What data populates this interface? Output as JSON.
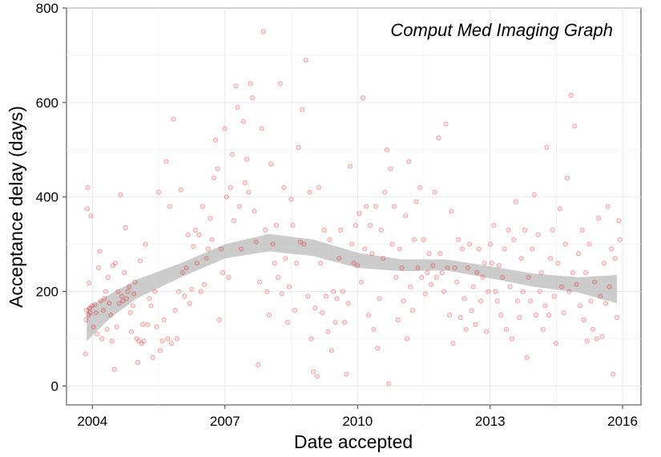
{
  "chart_data": {
    "type": "scatter",
    "annotation": "Comput Med Imaging Graph",
    "xlabel": "Date accepted",
    "ylabel": "Acceptance delay (days)",
    "xlim": [
      "2003-06-01",
      "2016-06-01"
    ],
    "ylim": [
      -40,
      800
    ],
    "x_ticks": [
      {
        "date": "2004-01-01",
        "label": "2004"
      },
      {
        "date": "2007-01-01",
        "label": "2007"
      },
      {
        "date": "2010-01-01",
        "label": "2010"
      },
      {
        "date": "2013-01-01",
        "label": "2013"
      },
      {
        "date": "2016-01-01",
        "label": "2016"
      }
    ],
    "y_ticks": [
      {
        "value": 0,
        "label": "0"
      },
      {
        "value": 200,
        "label": "200"
      },
      {
        "value": 400,
        "label": "400"
      },
      {
        "value": 600,
        "label": "600"
      },
      {
        "value": 800,
        "label": "800"
      }
    ],
    "grid": true,
    "point_color": "#e41a1c",
    "smooth_band_color": "#bbbbbb",
    "smooth": [
      {
        "date": "2003-11-15",
        "lo": 95,
        "hi": 165
      },
      {
        "date": "2004-06-01",
        "lo": 145,
        "hi": 195
      },
      {
        "date": "2005-01-01",
        "lo": 185,
        "hi": 225
      },
      {
        "date": "2006-01-01",
        "lo": 230,
        "hi": 260
      },
      {
        "date": "2007-01-01",
        "lo": 270,
        "hi": 300
      },
      {
        "date": "2008-01-01",
        "lo": 285,
        "hi": 322
      },
      {
        "date": "2009-01-01",
        "lo": 275,
        "hi": 310
      },
      {
        "date": "2010-01-01",
        "lo": 250,
        "hi": 282
      },
      {
        "date": "2011-01-01",
        "lo": 243,
        "hi": 268
      },
      {
        "date": "2012-01-01",
        "lo": 245,
        "hi": 268
      },
      {
        "date": "2013-01-01",
        "lo": 228,
        "hi": 253
      },
      {
        "date": "2014-01-01",
        "lo": 210,
        "hi": 238
      },
      {
        "date": "2015-01-01",
        "lo": 198,
        "hi": 230
      },
      {
        "date": "2015-11-15",
        "lo": 175,
        "hi": 235
      }
    ],
    "points": [
      [
        "2003-11-05",
        68
      ],
      [
        "2003-11-10",
        140
      ],
      [
        "2003-11-15",
        160
      ],
      [
        "2003-11-20",
        375
      ],
      [
        "2003-11-25",
        420
      ],
      [
        "2003-12-01",
        150
      ],
      [
        "2003-12-05",
        218
      ],
      [
        "2003-12-10",
        165
      ],
      [
        "2003-12-15",
        155
      ],
      [
        "2003-12-20",
        360
      ],
      [
        "2003-12-28",
        170
      ],
      [
        "2004-01-10",
        125
      ],
      [
        "2004-01-20",
        172
      ],
      [
        "2004-02-01",
        155
      ],
      [
        "2004-02-10",
        110
      ],
      [
        "2004-02-20",
        250
      ],
      [
        "2004-03-01",
        285
      ],
      [
        "2004-03-10",
        180
      ],
      [
        "2004-03-20",
        100
      ],
      [
        "2004-04-01",
        160
      ],
      [
        "2004-04-10",
        185
      ],
      [
        "2004-04-20",
        200
      ],
      [
        "2004-05-01",
        120
      ],
      [
        "2004-05-10",
        230
      ],
      [
        "2004-05-20",
        175
      ],
      [
        "2004-06-01",
        150
      ],
      [
        "2004-06-10",
        95
      ],
      [
        "2004-06-20",
        255
      ],
      [
        "2004-07-01",
        35
      ],
      [
        "2004-07-10",
        260
      ],
      [
        "2004-07-20",
        125
      ],
      [
        "2004-08-01",
        200
      ],
      [
        "2004-08-10",
        175
      ],
      [
        "2004-08-20",
        405
      ],
      [
        "2004-09-01",
        190
      ],
      [
        "2004-09-10",
        180
      ],
      [
        "2004-09-20",
        240
      ],
      [
        "2004-10-01",
        335
      ],
      [
        "2004-10-10",
        185
      ],
      [
        "2004-10-20",
        200
      ],
      [
        "2004-11-01",
        210
      ],
      [
        "2004-11-10",
        155
      ],
      [
        "2004-11-20",
        115
      ],
      [
        "2004-12-01",
        170
      ],
      [
        "2004-12-10",
        195
      ],
      [
        "2004-12-20",
        220
      ],
      [
        "2005-01-01",
        100
      ],
      [
        "2005-01-10",
        50
      ],
      [
        "2005-01-20",
        95
      ],
      [
        "2005-02-01",
        265
      ],
      [
        "2005-02-10",
        90
      ],
      [
        "2005-02-20",
        130
      ],
      [
        "2005-03-01",
        95
      ],
      [
        "2005-03-15",
        300
      ],
      [
        "2005-04-01",
        130
      ],
      [
        "2005-04-15",
        185
      ],
      [
        "2005-05-01",
        170
      ],
      [
        "2005-05-15",
        60
      ],
      [
        "2005-06-01",
        200
      ],
      [
        "2005-06-15",
        125
      ],
      [
        "2005-07-01",
        410
      ],
      [
        "2005-07-15",
        75
      ],
      [
        "2005-08-01",
        95
      ],
      [
        "2005-08-15",
        140
      ],
      [
        "2005-09-01",
        475
      ],
      [
        "2005-09-15",
        100
      ],
      [
        "2005-10-01",
        380
      ],
      [
        "2005-10-15",
        90
      ],
      [
        "2005-11-01",
        565
      ],
      [
        "2005-11-15",
        160
      ],
      [
        "2005-12-01",
        100
      ],
      [
        "2005-12-15",
        200
      ],
      [
        "2006-01-01",
        415
      ],
      [
        "2006-01-15",
        240
      ],
      [
        "2006-02-01",
        190
      ],
      [
        "2006-02-15",
        250
      ],
      [
        "2006-03-01",
        320
      ],
      [
        "2006-03-15",
        175
      ],
      [
        "2006-04-01",
        205
      ],
      [
        "2006-04-15",
        295
      ],
      [
        "2006-05-01",
        330
      ],
      [
        "2006-05-15",
        260
      ],
      [
        "2006-06-01",
        320
      ],
      [
        "2006-06-15",
        200
      ],
      [
        "2006-07-01",
        380
      ],
      [
        "2006-07-15",
        215
      ],
      [
        "2006-08-01",
        270
      ],
      [
        "2006-08-15",
        290
      ],
      [
        "2006-09-01",
        355
      ],
      [
        "2006-09-15",
        310
      ],
      [
        "2006-10-01",
        440
      ],
      [
        "2006-10-15",
        520
      ],
      [
        "2006-11-01",
        460
      ],
      [
        "2006-11-15",
        140
      ],
      [
        "2006-12-01",
        290
      ],
      [
        "2006-12-15",
        240
      ],
      [
        "2007-01-01",
        545
      ],
      [
        "2007-01-15",
        400
      ],
      [
        "2007-02-01",
        230
      ],
      [
        "2007-02-15",
        420
      ],
      [
        "2007-03-01",
        490
      ],
      [
        "2007-03-15",
        350
      ],
      [
        "2007-04-01",
        635
      ],
      [
        "2007-04-15",
        590
      ],
      [
        "2007-05-01",
        380
      ],
      [
        "2007-05-15",
        290
      ],
      [
        "2007-06-01",
        560
      ],
      [
        "2007-06-15",
        430
      ],
      [
        "2007-07-01",
        480
      ],
      [
        "2007-07-15",
        410
      ],
      [
        "2007-08-01",
        640
      ],
      [
        "2007-08-15",
        610
      ],
      [
        "2007-09-01",
        370
      ],
      [
        "2007-09-15",
        305
      ],
      [
        "2007-10-01",
        45
      ],
      [
        "2007-10-15",
        220
      ],
      [
        "2007-11-01",
        545
      ],
      [
        "2007-11-15",
        750
      ],
      [
        "2007-12-01",
        330
      ],
      [
        "2007-12-15",
        200
      ],
      [
        "2008-01-01",
        150
      ],
      [
        "2008-01-15",
        470
      ],
      [
        "2008-02-01",
        300
      ],
      [
        "2008-02-15",
        260
      ],
      [
        "2008-03-01",
        340
      ],
      [
        "2008-03-15",
        230
      ],
      [
        "2008-04-01",
        640
      ],
      [
        "2008-04-15",
        195
      ],
      [
        "2008-05-01",
        420
      ],
      [
        "2008-05-15",
        270
      ],
      [
        "2008-06-01",
        135
      ],
      [
        "2008-06-15",
        210
      ],
      [
        "2008-07-01",
        395
      ],
      [
        "2008-07-15",
        340
      ],
      [
        "2008-08-01",
        160
      ],
      [
        "2008-08-15",
        260
      ],
      [
        "2008-09-01",
        505
      ],
      [
        "2008-09-15",
        305
      ],
      [
        "2008-10-01",
        585
      ],
      [
        "2008-10-15",
        300
      ],
      [
        "2008-11-01",
        690
      ],
      [
        "2008-11-15",
        190
      ],
      [
        "2008-12-01",
        410
      ],
      [
        "2008-12-15",
        100
      ],
      [
        "2009-01-01",
        30
      ],
      [
        "2009-01-15",
        165
      ],
      [
        "2009-02-01",
        20
      ],
      [
        "2009-02-15",
        420
      ],
      [
        "2009-03-01",
        260
      ],
      [
        "2009-03-15",
        155
      ],
      [
        "2009-04-01",
        330
      ],
      [
        "2009-04-15",
        190
      ],
      [
        "2009-05-01",
        115
      ],
      [
        "2009-05-15",
        310
      ],
      [
        "2009-06-01",
        75
      ],
      [
        "2009-06-15",
        200
      ],
      [
        "2009-07-01",
        135
      ],
      [
        "2009-07-15",
        185
      ],
      [
        "2009-08-01",
        270
      ],
      [
        "2009-08-15",
        330
      ],
      [
        "2009-09-01",
        200
      ],
      [
        "2009-09-15",
        135
      ],
      [
        "2009-10-01",
        25
      ],
      [
        "2009-10-15",
        175
      ],
      [
        "2009-11-01",
        465
      ],
      [
        "2009-11-15",
        300
      ],
      [
        "2009-12-01",
        260
      ],
      [
        "2009-12-15",
        340
      ],
      [
        "2010-01-01",
        255
      ],
      [
        "2010-01-15",
        365
      ],
      [
        "2010-02-01",
        220
      ],
      [
        "2010-02-15",
        610
      ],
      [
        "2010-03-01",
        290
      ],
      [
        "2010-03-15",
        380
      ],
      [
        "2010-04-01",
        150
      ],
      [
        "2010-04-15",
        340
      ],
      [
        "2010-05-01",
        280
      ],
      [
        "2010-05-15",
        120
      ],
      [
        "2010-06-01",
        380
      ],
      [
        "2010-06-15",
        80
      ],
      [
        "2010-07-01",
        185
      ],
      [
        "2010-07-15",
        330
      ],
      [
        "2010-08-01",
        270
      ],
      [
        "2010-08-15",
        410
      ],
      [
        "2010-09-01",
        500
      ],
      [
        "2010-09-15",
        5
      ],
      [
        "2010-10-01",
        460
      ],
      [
        "2010-10-15",
        300
      ],
      [
        "2010-11-01",
        380
      ],
      [
        "2010-11-15",
        230
      ],
      [
        "2010-12-01",
        140
      ],
      [
        "2010-12-15",
        290
      ],
      [
        "2011-01-01",
        250
      ],
      [
        "2011-01-15",
        180
      ],
      [
        "2011-02-01",
        360
      ],
      [
        "2011-02-15",
        100
      ],
      [
        "2011-03-01",
        475
      ],
      [
        "2011-03-15",
        210
      ],
      [
        "2011-04-01",
        160
      ],
      [
        "2011-04-15",
        310
      ],
      [
        "2011-05-01",
        390
      ],
      [
        "2011-05-15",
        250
      ],
      [
        "2011-06-01",
        420
      ],
      [
        "2011-06-15",
        230
      ],
      [
        "2011-07-01",
        310
      ],
      [
        "2011-07-15",
        195
      ],
      [
        "2011-08-01",
        240
      ],
      [
        "2011-08-15",
        280
      ],
      [
        "2011-09-01",
        215
      ],
      [
        "2011-09-15",
        255
      ],
      [
        "2011-10-01",
        410
      ],
      [
        "2011-10-15",
        230
      ],
      [
        "2011-11-01",
        525
      ],
      [
        "2011-11-15",
        280
      ],
      [
        "2011-12-01",
        240
      ],
      [
        "2011-12-15",
        200
      ],
      [
        "2012-01-01",
        555
      ],
      [
        "2012-01-15",
        250
      ],
      [
        "2012-02-01",
        150
      ],
      [
        "2012-02-15",
        370
      ],
      [
        "2012-03-01",
        90
      ],
      [
        "2012-03-15",
        250
      ],
      [
        "2012-04-01",
        220
      ],
      [
        "2012-04-15",
        310
      ],
      [
        "2012-05-01",
        145
      ],
      [
        "2012-05-15",
        290
      ],
      [
        "2012-06-01",
        185
      ],
      [
        "2012-06-15",
        120
      ],
      [
        "2012-07-01",
        250
      ],
      [
        "2012-07-15",
        300
      ],
      [
        "2012-08-01",
        160
      ],
      [
        "2012-08-15",
        210
      ],
      [
        "2012-09-01",
        130
      ],
      [
        "2012-09-15",
        240
      ],
      [
        "2012-10-01",
        290
      ],
      [
        "2012-10-15",
        180
      ],
      [
        "2012-11-01",
        230
      ],
      [
        "2012-11-15",
        260
      ],
      [
        "2012-12-01",
        115
      ],
      [
        "2012-12-15",
        200
      ],
      [
        "2013-01-01",
        300
      ],
      [
        "2013-01-15",
        260
      ],
      [
        "2013-02-01",
        340
      ],
      [
        "2013-02-15",
        200
      ],
      [
        "2013-03-01",
        180
      ],
      [
        "2013-03-15",
        255
      ],
      [
        "2013-04-01",
        150
      ],
      [
        "2013-04-15",
        230
      ],
      [
        "2013-05-01",
        290
      ],
      [
        "2013-05-15",
        120
      ],
      [
        "2013-06-01",
        330
      ],
      [
        "2013-06-15",
        210
      ],
      [
        "2013-07-01",
        100
      ],
      [
        "2013-07-15",
        310
      ],
      [
        "2013-08-01",
        390
      ],
      [
        "2013-08-15",
        180
      ],
      [
        "2013-09-01",
        145
      ],
      [
        "2013-09-15",
        270
      ],
      [
        "2013-10-01",
        200
      ],
      [
        "2013-10-15",
        330
      ],
      [
        "2013-11-01",
        60
      ],
      [
        "2013-11-15",
        230
      ],
      [
        "2013-12-01",
        180
      ],
      [
        "2013-12-15",
        290
      ],
      [
        "2014-01-01",
        405
      ],
      [
        "2014-01-15",
        150
      ],
      [
        "2014-02-01",
        320
      ],
      [
        "2014-02-15",
        200
      ],
      [
        "2014-03-01",
        240
      ],
      [
        "2014-03-15",
        120
      ],
      [
        "2014-04-01",
        170
      ],
      [
        "2014-04-15",
        505
      ],
      [
        "2014-05-01",
        150
      ],
      [
        "2014-05-15",
        270
      ],
      [
        "2014-06-01",
        330
      ],
      [
        "2014-06-15",
        190
      ],
      [
        "2014-07-01",
        90
      ],
      [
        "2014-07-15",
        260
      ],
      [
        "2014-08-01",
        375
      ],
      [
        "2014-08-15",
        210
      ],
      [
        "2014-09-01",
        155
      ],
      [
        "2014-09-15",
        300
      ],
      [
        "2014-10-01",
        440
      ],
      [
        "2014-10-15",
        200
      ],
      [
        "2014-11-01",
        615
      ],
      [
        "2014-11-15",
        240
      ],
      [
        "2014-12-01",
        550
      ],
      [
        "2014-12-15",
        215
      ],
      [
        "2015-01-01",
        280
      ],
      [
        "2015-01-15",
        170
      ],
      [
        "2015-02-01",
        330
      ],
      [
        "2015-02-15",
        140
      ],
      [
        "2015-03-01",
        240
      ],
      [
        "2015-03-15",
        95
      ],
      [
        "2015-04-01",
        300
      ],
      [
        "2015-04-15",
        180
      ],
      [
        "2015-05-01",
        120
      ],
      [
        "2015-05-15",
        220
      ],
      [
        "2015-06-01",
        100
      ],
      [
        "2015-06-15",
        355
      ],
      [
        "2015-07-01",
        190
      ],
      [
        "2015-07-15",
        105
      ],
      [
        "2015-08-01",
        260
      ],
      [
        "2015-08-15",
        175
      ],
      [
        "2015-09-01",
        380
      ],
      [
        "2015-09-15",
        210
      ],
      [
        "2015-10-01",
        290
      ],
      [
        "2015-10-15",
        25
      ],
      [
        "2015-11-01",
        270
      ],
      [
        "2015-11-15",
        145
      ],
      [
        "2015-12-01",
        350
      ],
      [
        "2015-12-10",
        310
      ]
    ]
  }
}
